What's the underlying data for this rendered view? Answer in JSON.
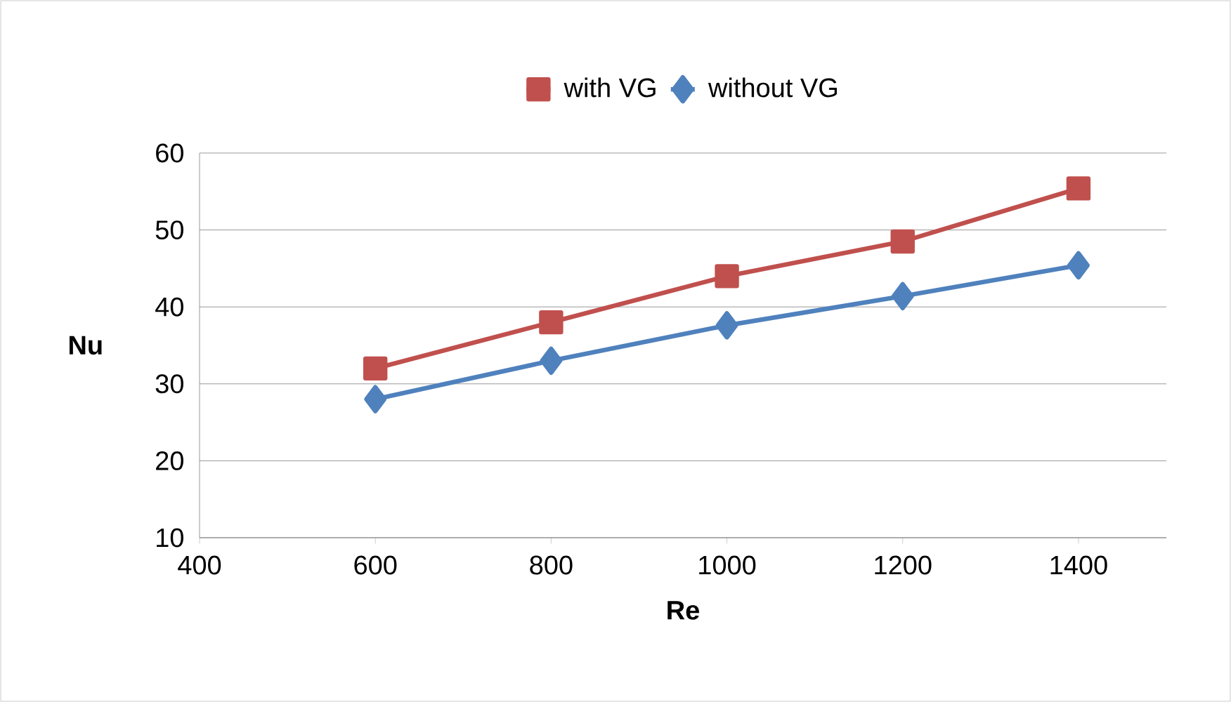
{
  "chart_data": {
    "type": "line",
    "xlabel": "Re",
    "ylabel": "Nu",
    "x": [
      600,
      800,
      1000,
      1200,
      1400
    ],
    "series": [
      {
        "name": "with VG",
        "color": "#c0504d",
        "marker": "square",
        "values": [
          32,
          38,
          44,
          48.5,
          55.4
        ]
      },
      {
        "name": "without VG",
        "color": "#4f81bd",
        "marker": "diamond",
        "values": [
          28,
          33,
          37.6,
          41.4,
          45.4
        ]
      }
    ],
    "xlim": [
      400,
      1500
    ],
    "xticks": [
      400,
      600,
      800,
      1000,
      1200,
      1400
    ],
    "ylim": [
      10,
      60
    ],
    "yticks": [
      10,
      20,
      30,
      40,
      50,
      60
    ],
    "grid": "y",
    "legend": "top",
    "line_style": "solid"
  }
}
